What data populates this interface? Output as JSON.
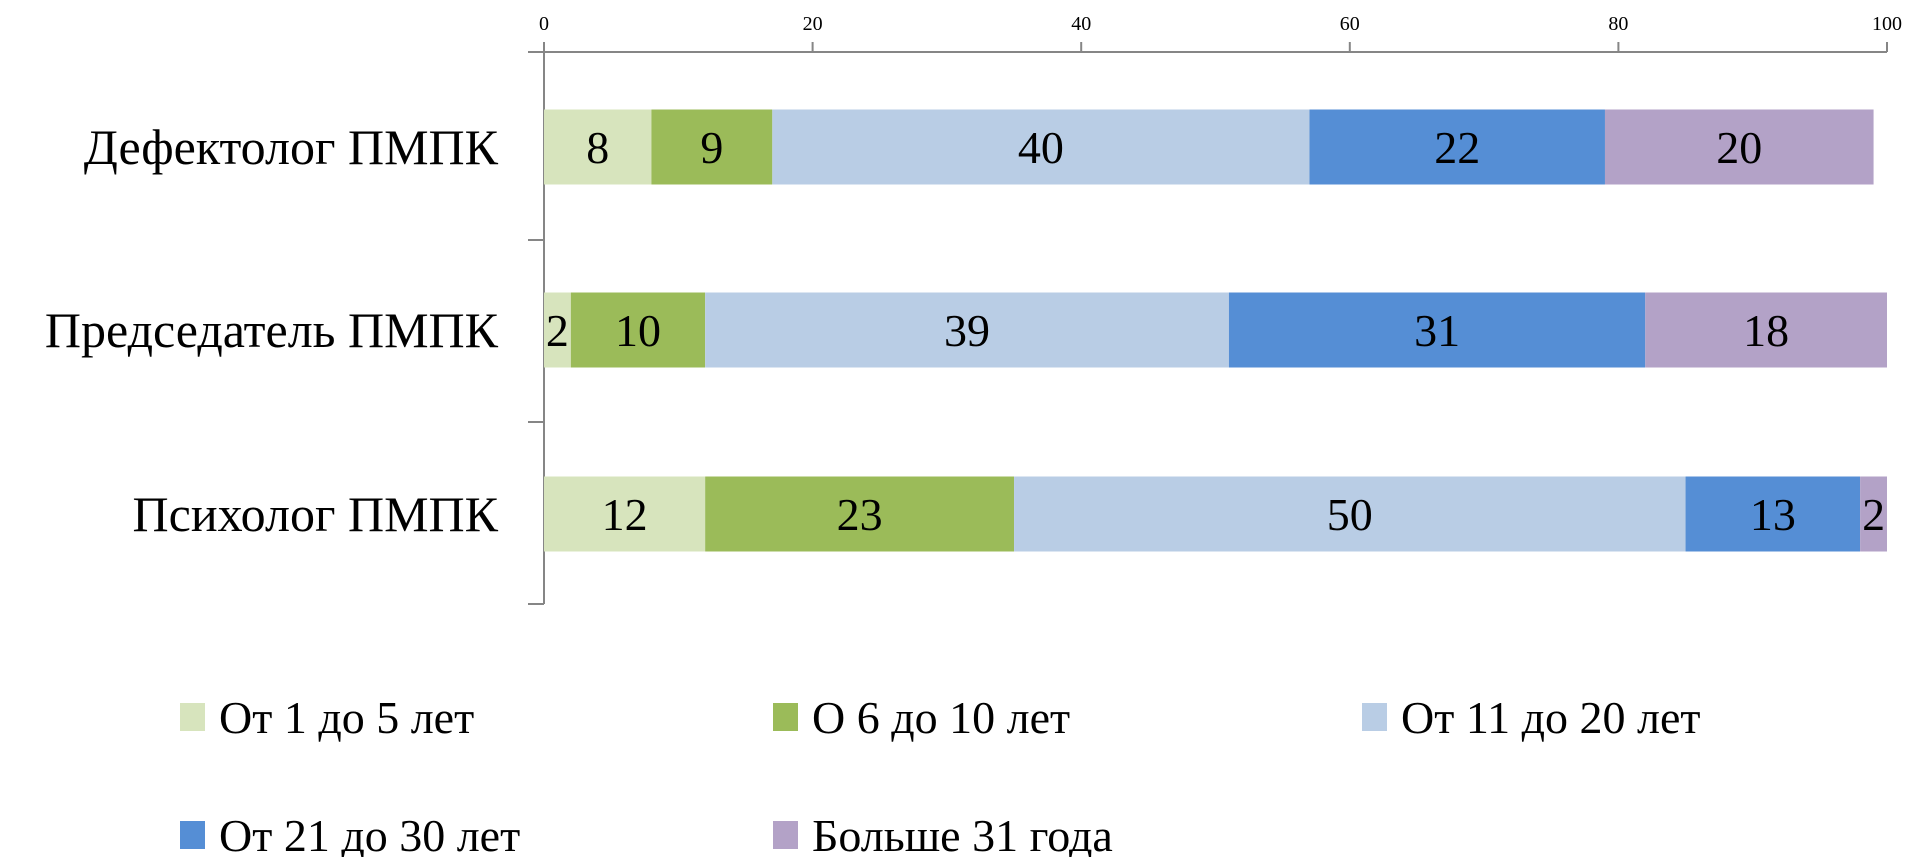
{
  "chart_data": {
    "type": "bar",
    "orientation": "horizontal",
    "stacked": true,
    "categories": [
      "Дефектолог ПМПК",
      "Председатель ПМПК",
      "Психолог ПМПК"
    ],
    "series": [
      {
        "name": "От 1 до 5 лет",
        "color": "#d7e4bd",
        "values": [
          8,
          2,
          12
        ]
      },
      {
        "name": "О 6 до 10 лет",
        "color": "#9bbb59",
        "values": [
          9,
          10,
          23
        ]
      },
      {
        "name": "От 11 до 20 лет",
        "color": "#b9cde5",
        "values": [
          40,
          39,
          50
        ]
      },
      {
        "name": "От 21 до 30 лет",
        "color": "#558ed5",
        "values": [
          22,
          31,
          13
        ]
      },
      {
        "name": "Больше 31 года",
        "color": "#b3a2c7",
        "values": [
          20,
          18,
          2
        ]
      }
    ],
    "xticks": [
      "0",
      "20",
      "40",
      "60",
      "80",
      "100"
    ],
    "xlim": [
      0,
      100
    ],
    "axis_position": "top",
    "grid": false,
    "legend_position": "bottom",
    "title": "",
    "xlabel": "",
    "ylabel": ""
  }
}
